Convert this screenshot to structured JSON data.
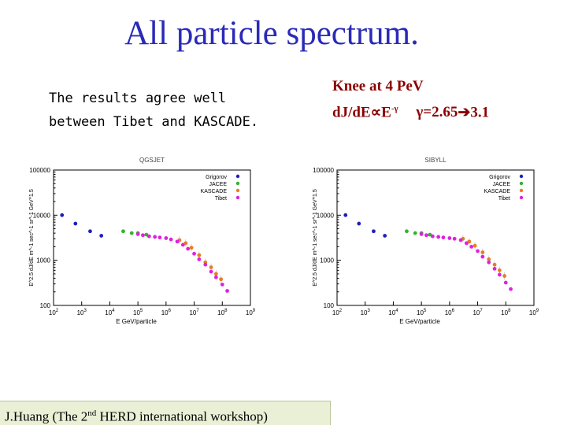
{
  "slide": {
    "title": "All particle spectrum.",
    "left_note": [
      "The results agree well",
      "between Tibet and KASCADE."
    ],
    "right_note": {
      "line1": "Knee at 4 PeV",
      "formula_prefix": "dJ/dE",
      "proportional_symbol": "∝",
      "formula_base": "E",
      "formula_exponent": "-γ",
      "gamma_text": "γ=2.65",
      "arrow": "➔",
      "gamma_end": "3.1"
    },
    "footer": {
      "prefix": "J.Huang (The 2",
      "sup": "nd",
      "suffix": " HERD international workshop)"
    }
  },
  "colors": {
    "title": "#2a2ab8",
    "right_note": "#8b0000",
    "footer_bg": "#e9f0d6",
    "Grigorov": "#1f1fb8",
    "JACEE": "#2db52d",
    "KASCADE": "#e67e22",
    "Tibet": "#e020e0"
  },
  "chart_data": [
    {
      "type": "scatter",
      "title": "QGSJET",
      "xlabel": "E GeV/particle",
      "ylabel": "E^2.5 dJ/dE m^-1 sec^-1 sr^-1 GeV^1.5",
      "xscale": "log",
      "yscale": "log",
      "xlim": [
        100,
        1000000000
      ],
      "ylim": [
        100,
        100000
      ],
      "xticks": [
        "10^2",
        "10^3",
        "10^4",
        "10^5",
        "10^6",
        "10^7",
        "10^8",
        "10^9"
      ],
      "yticks": [
        "100",
        "1000",
        "10000",
        "100000"
      ],
      "legend_position": "top-right",
      "series": [
        {
          "name": "Grigorov",
          "x": [
            200,
            600,
            2000,
            5000
          ],
          "y": [
            10000,
            6500,
            4400,
            3500
          ]
        },
        {
          "name": "JACEE",
          "x": [
            30000,
            60000,
            100000,
            200000
          ],
          "y": [
            4400,
            4000,
            4000,
            3700
          ]
        },
        {
          "name": "KASCADE",
          "x": [
            3000000,
            5000000,
            8000000,
            15000000,
            25000000,
            40000000,
            60000000,
            90000000
          ],
          "y": [
            2800,
            2400,
            1900,
            1300,
            900,
            700,
            500,
            380
          ]
        },
        {
          "name": "Tibet",
          "x": [
            100000,
            150000,
            250000,
            400000,
            600000,
            1000000,
            1500000,
            2500000,
            4000000,
            6000000,
            10000000,
            15000000,
            25000000,
            40000000,
            60000000,
            100000000,
            150000000
          ],
          "y": [
            3800,
            3600,
            3400,
            3300,
            3200,
            3100,
            2900,
            2600,
            2200,
            1800,
            1400,
            1050,
            800,
            560,
            420,
            290,
            210
          ]
        }
      ]
    },
    {
      "type": "scatter",
      "title": "SIBYLL",
      "xlabel": "E GeV/particle",
      "ylabel": "E^2.5 dJ/dE m^-1 sec^-1 sr^-1 GeV^1.5",
      "xscale": "log",
      "yscale": "log",
      "xlim": [
        100,
        1000000000
      ],
      "ylim": [
        100,
        100000
      ],
      "xticks": [
        "10^2",
        "10^3",
        "10^4",
        "10^5",
        "10^6",
        "10^7",
        "10^8",
        "10^9"
      ],
      "yticks": [
        "100",
        "1000",
        "10000",
        "100000"
      ],
      "legend_position": "top-right",
      "series": [
        {
          "name": "Grigorov",
          "x": [
            200,
            600,
            2000,
            5000
          ],
          "y": [
            10000,
            6500,
            4400,
            3500
          ]
        },
        {
          "name": "JACEE",
          "x": [
            30000,
            60000,
            100000,
            200000
          ],
          "y": [
            4400,
            4000,
            4000,
            3700
          ]
        },
        {
          "name": "KASCADE",
          "x": [
            3000000,
            5000000,
            8000000,
            15000000,
            25000000,
            40000000,
            60000000,
            90000000
          ],
          "y": [
            3000,
            2600,
            2100,
            1500,
            1050,
            800,
            600,
            450
          ]
        },
        {
          "name": "Tibet",
          "x": [
            100000,
            150000,
            250000,
            400000,
            600000,
            1000000,
            1500000,
            2500000,
            4000000,
            6000000,
            10000000,
            15000000,
            25000000,
            40000000,
            60000000,
            100000000,
            150000000
          ],
          "y": [
            3800,
            3600,
            3400,
            3300,
            3200,
            3100,
            3000,
            2800,
            2400,
            2000,
            1600,
            1200,
            900,
            650,
            480,
            320,
            230
          ]
        }
      ]
    }
  ]
}
